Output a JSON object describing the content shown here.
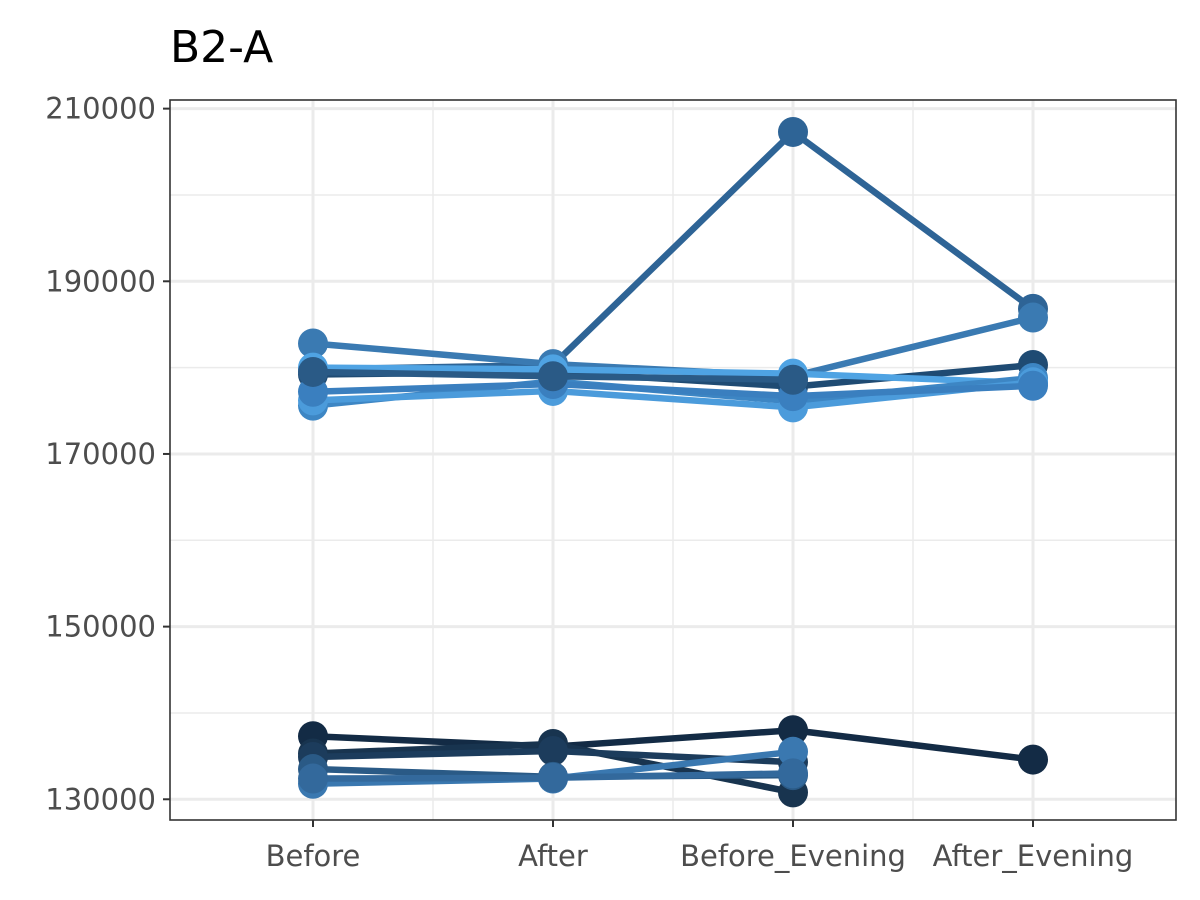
{
  "chart_data": {
    "type": "line",
    "title": "B2-A",
    "xlabel": "",
    "ylabel": "",
    "categories": [
      "Before",
      "After",
      "Before_Evening",
      "After_Evening"
    ],
    "ylim": [
      127600,
      211000
    ],
    "yticks": [
      130000,
      150000,
      170000,
      190000,
      210000
    ],
    "grid": true,
    "legend": "none",
    "series": [
      {
        "color": "#2e6496",
        "values": [
          179800,
          180300,
          207300,
          186800
        ]
      },
      {
        "color": "#3a7ab2",
        "values": [
          182800,
          180400,
          179000,
          185800
        ]
      },
      {
        "color": "#1f4b73",
        "values": [
          179200,
          179500,
          177800,
          180300
        ]
      },
      {
        "color": "#4fa3e3",
        "values": [
          180000,
          179800,
          179300,
          178200
        ]
      },
      {
        "color": "#3d86c4",
        "values": [
          175600,
          178400,
          176100,
          178800
        ]
      },
      {
        "color": "#4b9bdb",
        "values": [
          176200,
          177300,
          175400,
          178300
        ]
      },
      {
        "color": "#3a7fbf",
        "values": [
          177200,
          178100,
          176700,
          177900
        ]
      },
      {
        "color": "#2a5a86",
        "values": [
          179500,
          179000,
          178600,
          null
        ]
      },
      {
        "color": "#132b45",
        "values": [
          137300,
          136100,
          138000,
          134600
        ]
      },
      {
        "color": "#18344f",
        "values": [
          135300,
          136400,
          130800,
          null
        ]
      },
      {
        "color": "#1c3c5c",
        "values": [
          134900,
          135600,
          134300,
          null
        ]
      },
      {
        "color": "#2a5a86",
        "values": [
          133500,
          132600,
          132800,
          null
        ]
      },
      {
        "color": "#3a78b0",
        "values": [
          131800,
          132400,
          135500,
          null
        ]
      },
      {
        "color": "#33699c",
        "values": [
          132400,
          132500,
          133000,
          null
        ]
      }
    ]
  }
}
